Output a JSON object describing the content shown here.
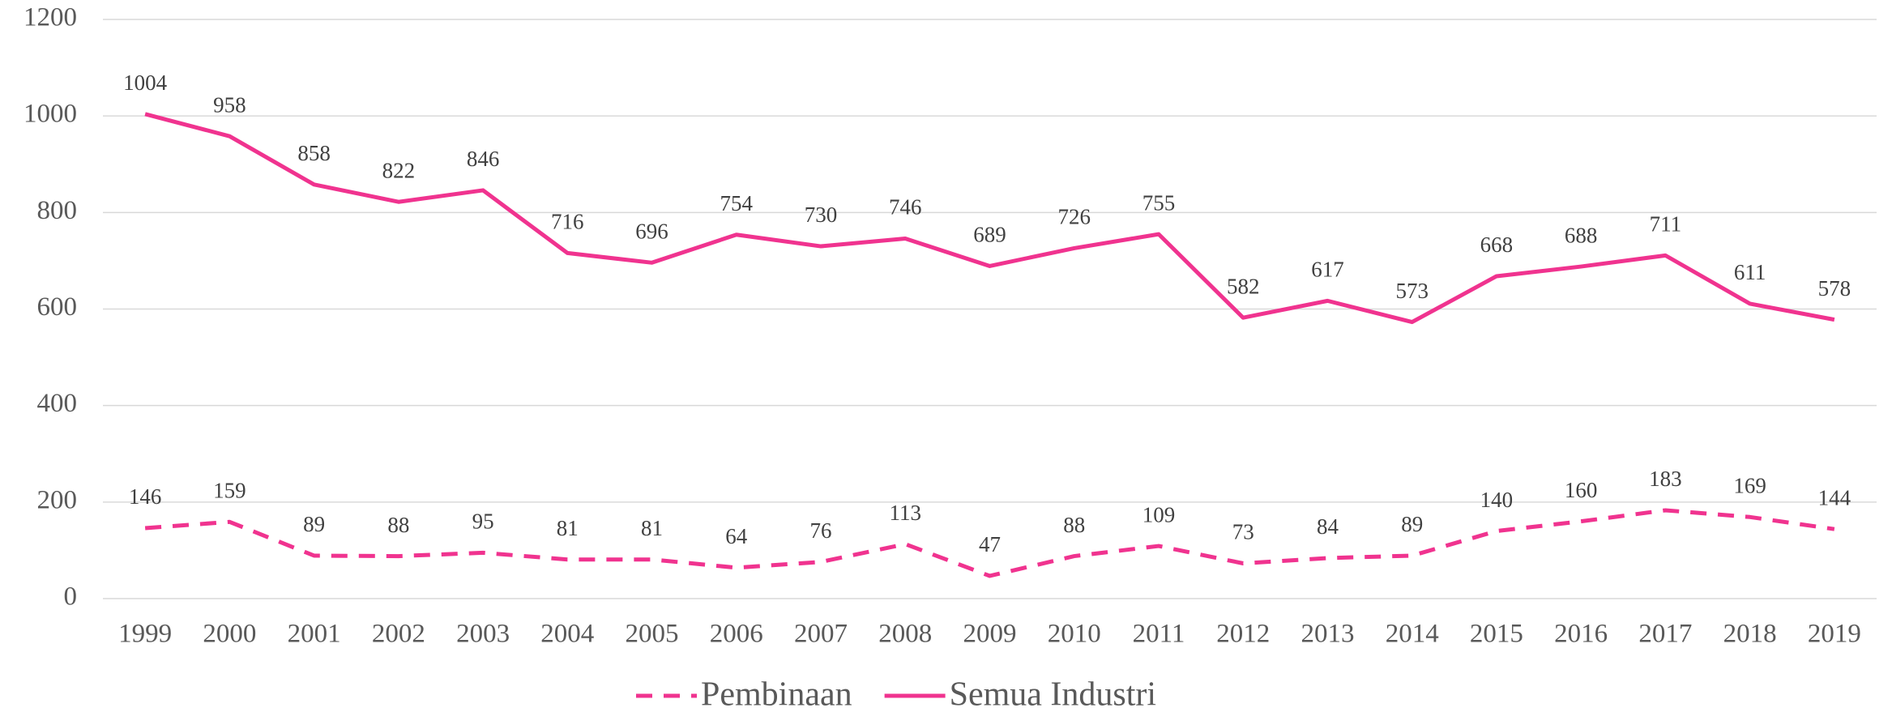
{
  "chart_data": {
    "type": "line",
    "categories": [
      "1999",
      "2000",
      "2001",
      "2002",
      "2003",
      "2004",
      "2005",
      "2006",
      "2007",
      "2008",
      "2009",
      "2010",
      "2011",
      "2012",
      "2013",
      "2014",
      "2015",
      "2016",
      "2017",
      "2018",
      "2019"
    ],
    "series": [
      {
        "name": "Pembinaan",
        "color": "#f0338f",
        "dashed": true,
        "values": [
          146,
          159,
          89,
          88,
          95,
          81,
          81,
          64,
          76,
          113,
          47,
          88,
          109,
          73,
          84,
          89,
          140,
          160,
          183,
          169,
          144
        ]
      },
      {
        "name": "Semua Industri",
        "color": "#f0338f",
        "dashed": false,
        "values": [
          1004,
          958,
          858,
          822,
          846,
          716,
          696,
          754,
          730,
          746,
          689,
          726,
          755,
          582,
          617,
          573,
          668,
          688,
          711,
          611,
          578
        ]
      }
    ],
    "ylim": [
      0,
      1200
    ],
    "yticks": [
      0,
      200,
      400,
      600,
      800,
      1000,
      1200
    ],
    "grid": true,
    "legend": "bottom"
  }
}
